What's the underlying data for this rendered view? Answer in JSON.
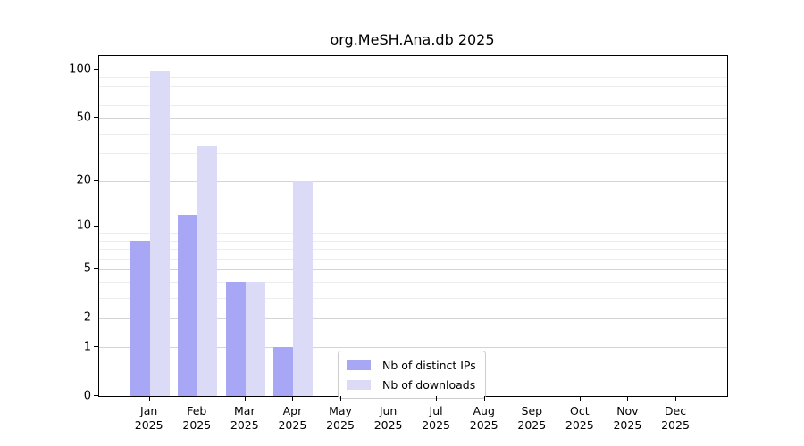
{
  "title": "org.MeSH.Ana.db 2025",
  "chart_data": {
    "type": "bar",
    "title": "org.MeSH.Ana.db 2025",
    "categories": [
      "Jan 2025",
      "Feb 2025",
      "Mar 2025",
      "Apr 2025",
      "May 2025",
      "Jun 2025",
      "Jul 2025",
      "Aug 2025",
      "Sep 2025",
      "Oct 2025",
      "Nov 2025",
      "Dec 2025"
    ],
    "series": [
      {
        "name": "Nb of distinct IPs",
        "color": "#a7a7f6",
        "values": [
          8,
          12,
          4,
          1,
          0,
          0,
          0,
          0,
          0,
          0,
          0,
          0
        ]
      },
      {
        "name": "Nb of downloads",
        "color": "#dbdbf8",
        "values": [
          97,
          33,
          4,
          20,
          0,
          0,
          0,
          0,
          0,
          0,
          0,
          0
        ]
      }
    ],
    "xlabel": "",
    "ylabel": "",
    "y_scale": "log10(1+value)",
    "y_ticks": [
      100,
      50,
      20,
      10,
      5,
      2,
      1,
      0
    ],
    "y_minor_ticks": [
      90,
      80,
      70,
      60,
      40,
      30,
      9,
      8,
      7,
      6,
      4,
      3
    ],
    "ylim": [
      0,
      120
    ],
    "grid": "horizontal",
    "legend_position": "inside-bottom-center"
  },
  "colors": {
    "background": "#ffffff",
    "axis": "#000000",
    "text": "#000000",
    "major_grid": "#d4d4d4",
    "minor_grid": "#ededed",
    "legend_border": "#cccccc",
    "bar_distinct_ips": "#a7a7f6",
    "bar_downloads": "#dbdbf8"
  }
}
